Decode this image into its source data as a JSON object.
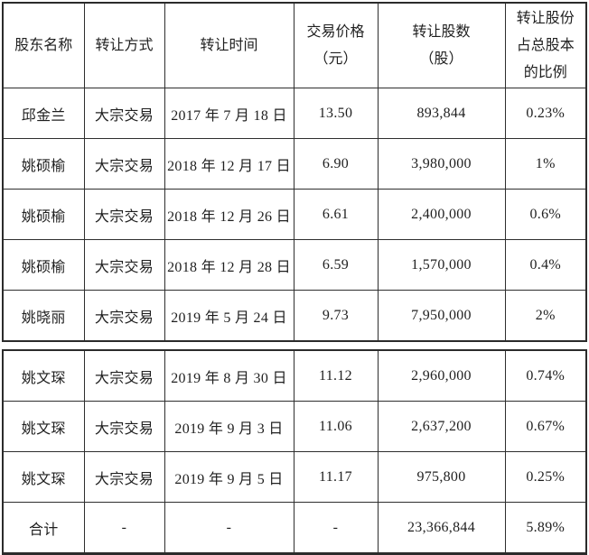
{
  "colors": {
    "border": "#2b2b2b",
    "text": "#1f1f1f",
    "background": "#ffffff"
  },
  "header": {
    "shareholder": "股东名称",
    "method": "转让方式",
    "date": "转让时间",
    "price": "交易价格\n（元）",
    "shares": "转让股数\n（股）",
    "ratio": "转让股份\n占总股本\n的比例"
  },
  "table1": {
    "rows": [
      {
        "shareholder": "邱金兰",
        "method": "大宗交易",
        "date": "2017 年 7 月 18 日",
        "price": "13.50",
        "shares": "893,844",
        "ratio": "0.23%"
      },
      {
        "shareholder": "姚硕榆",
        "method": "大宗交易",
        "date": "2018 年 12 月 17 日",
        "price": "6.90",
        "shares": "3,980,000",
        "ratio": "1%"
      },
      {
        "shareholder": "姚硕榆",
        "method": "大宗交易",
        "date": "2018 年 12 月 26 日",
        "price": "6.61",
        "shares": "2,400,000",
        "ratio": "0.6%"
      },
      {
        "shareholder": "姚硕榆",
        "method": "大宗交易",
        "date": "2018 年 12 月 28 日",
        "price": "6.59",
        "shares": "1,570,000",
        "ratio": "0.4%"
      },
      {
        "shareholder": "姚晓丽",
        "method": "大宗交易",
        "date": "2019 年 5 月 24 日",
        "price": "9.73",
        "shares": "7,950,000",
        "ratio": "2%"
      }
    ]
  },
  "table2": {
    "rows": [
      {
        "shareholder": "姚文琛",
        "method": "大宗交易",
        "date": "2019 年 8 月 30 日",
        "price": "11.12",
        "shares": "2,960,000",
        "ratio": "0.74%"
      },
      {
        "shareholder": "姚文琛",
        "method": "大宗交易",
        "date": "2019 年 9 月 3 日",
        "price": "11.06",
        "shares": "2,637,200",
        "ratio": "0.67%"
      },
      {
        "shareholder": "姚文琛",
        "method": "大宗交易",
        "date": "2019 年 9 月 5 日",
        "price": "11.17",
        "shares": "975,800",
        "ratio": "0.25%"
      },
      {
        "shareholder": "合计",
        "method": "-",
        "date": "-",
        "price": "-",
        "shares": "23,366,844",
        "ratio": "5.89%"
      }
    ]
  }
}
